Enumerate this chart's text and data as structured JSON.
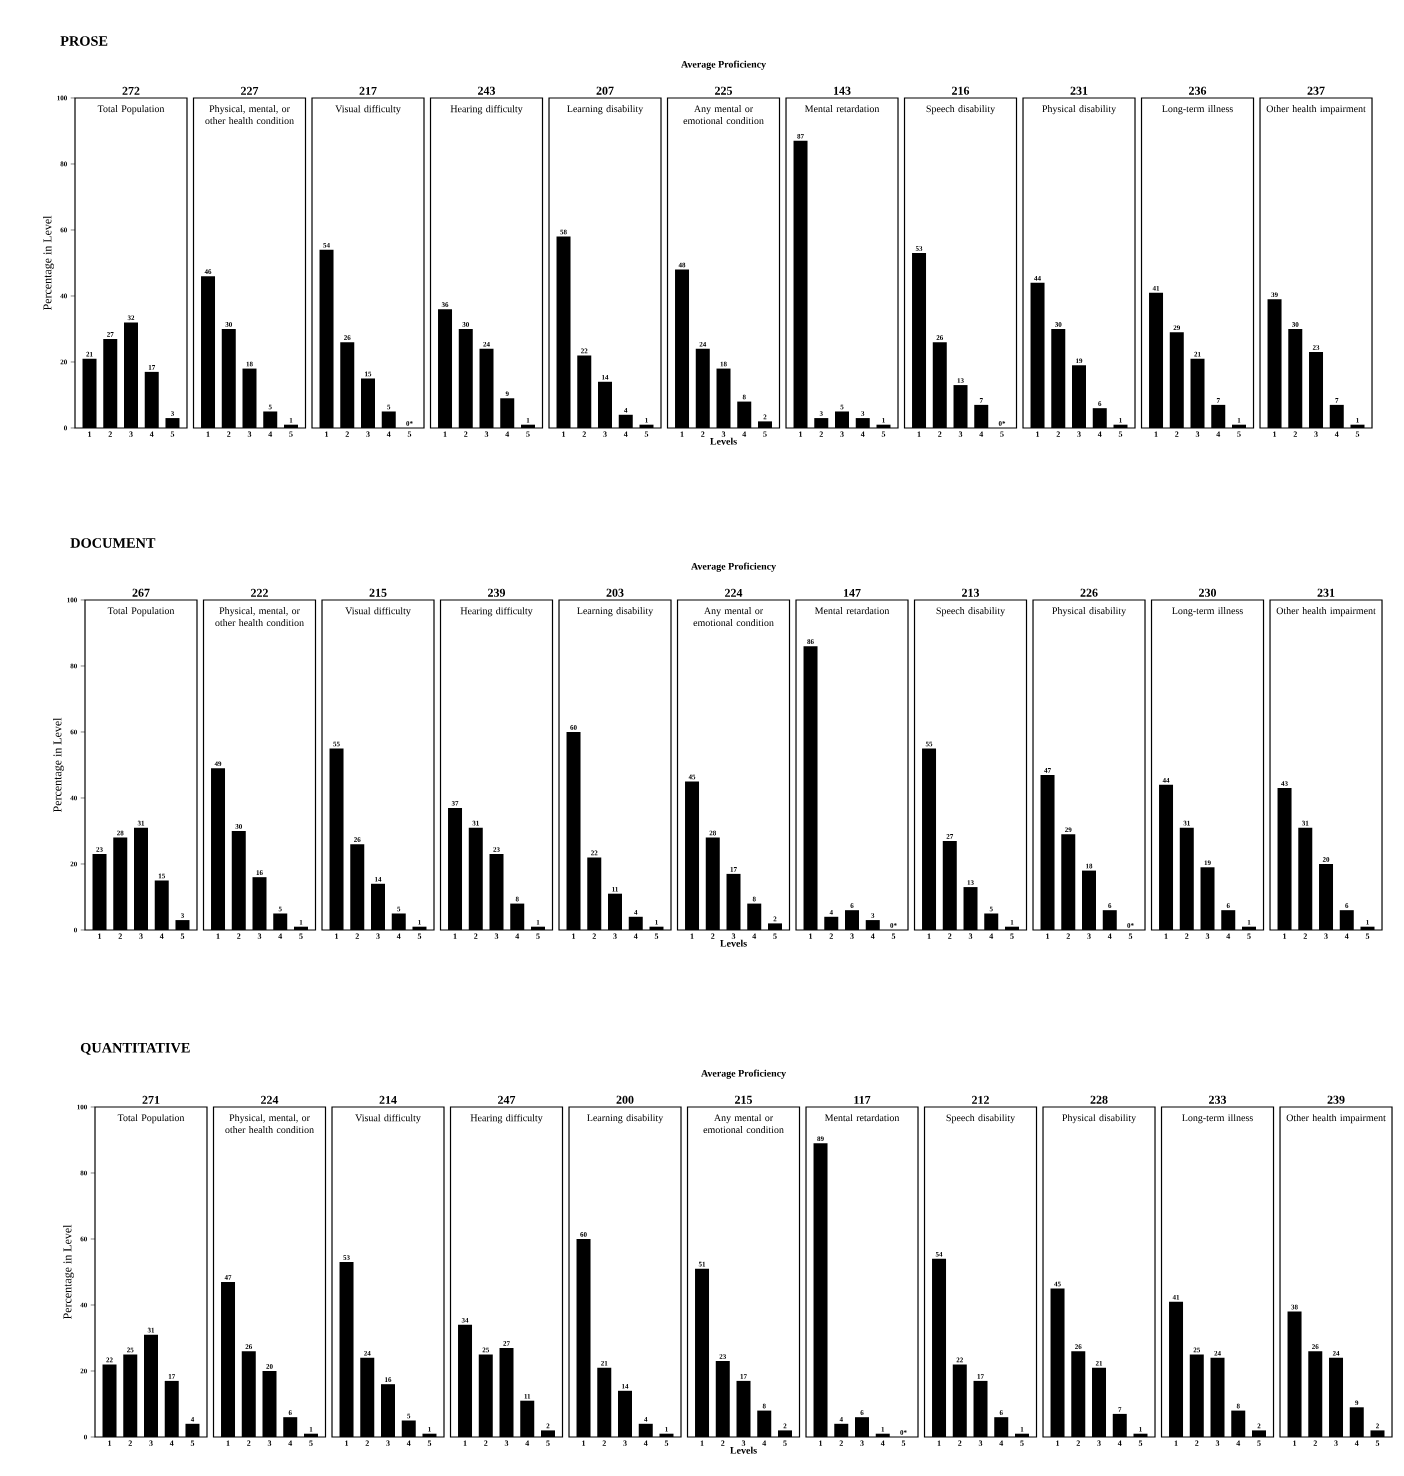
{
  "chart_data": [
    {
      "type": "bar",
      "title": "Total Population",
      "subtitle": "272",
      "annotations": [
        "PROSE"
      ],
      "ylabel": "Percentage in Level",
      "categories": [
        "1",
        "2",
        "3",
        "4",
        "5"
      ],
      "values": [
        21,
        27,
        32,
        17,
        3
      ],
      "value_labels": [
        "21",
        "27",
        "32",
        "17",
        "3"
      ],
      "color": "#000000",
      "ylim": [
        0,
        100
      ],
      "yticks": [
        0,
        20,
        40,
        60,
        80,
        100
      ]
    },
    {
      "type": "bar",
      "title": "Physical, mental, or other health condition",
      "subtitle": "227",
      "categories": [
        "1",
        "2",
        "3",
        "4",
        "5"
      ],
      "values": [
        46,
        30,
        18,
        5,
        1
      ],
      "value_labels": [
        "46",
        "30",
        "18",
        "5",
        "1"
      ],
      "color": "#000000",
      "ylim": [
        0,
        100
      ],
      "tick_labels": "x"
    },
    {
      "type": "bar",
      "title": "Visual difficulty",
      "subtitle": "217",
      "categories": [
        "1",
        "2",
        "3",
        "4",
        "5"
      ],
      "values": [
        54,
        26,
        15,
        5,
        0
      ],
      "value_labels": [
        "54",
        "26",
        "15",
        "5",
        "0*"
      ],
      "color": "#000000",
      "ylim": [
        0,
        100
      ],
      "tick_labels": "x"
    },
    {
      "type": "bar",
      "title": "Hearing difficulty",
      "subtitle": "243",
      "categories": [
        "1",
        "2",
        "3",
        "4",
        "5"
      ],
      "values": [
        36,
        30,
        24,
        9,
        1
      ],
      "value_labels": [
        "36",
        "30",
        "24",
        "9",
        "1"
      ],
      "color": "#000000",
      "ylim": [
        0,
        100
      ],
      "tick_labels": "x"
    },
    {
      "type": "bar",
      "title": "Learning disability",
      "subtitle": "207",
      "categories": [
        "1",
        "2",
        "3",
        "4",
        "5"
      ],
      "values": [
        58,
        22,
        14,
        4,
        1
      ],
      "value_labels": [
        "58",
        "22",
        "14",
        "4",
        "1"
      ],
      "color": "#000000",
      "ylim": [
        0,
        100
      ],
      "tick_labels": "x"
    },
    {
      "type": "bar",
      "title": "Any mental or emotional condition",
      "subtitle": "225",
      "annotations": [
        "Average Proficiency"
      ],
      "xlabel": "Levels",
      "categories": [
        "1",
        "2",
        "3",
        "4",
        "5"
      ],
      "values": [
        48,
        24,
        18,
        8,
        2
      ],
      "value_labels": [
        "48",
        "24",
        "18",
        "8",
        "2"
      ],
      "color": "#000000",
      "ylim": [
        0,
        100
      ],
      "tick_labels": "x"
    },
    {
      "type": "bar",
      "title": "Mental retardation",
      "subtitle": "143",
      "categories": [
        "1",
        "2",
        "3",
        "4",
        "5"
      ],
      "values": [
        87,
        3,
        5,
        3,
        1
      ],
      "value_labels": [
        "87",
        "3",
        "5",
        "3",
        "1"
      ],
      "color": "#000000",
      "ylim": [
        0,
        100
      ],
      "tick_labels": "x"
    },
    {
      "type": "bar",
      "title": "Speech disability",
      "subtitle": "216",
      "categories": [
        "1",
        "2",
        "3",
        "4",
        "5"
      ],
      "values": [
        53,
        26,
        13,
        7,
        0
      ],
      "value_labels": [
        "53",
        "26",
        "13",
        "7",
        "0*"
      ],
      "color": "#000000",
      "ylim": [
        0,
        100
      ],
      "tick_labels": "x"
    },
    {
      "type": "bar",
      "title": "Physical disability",
      "subtitle": "231",
      "categories": [
        "1",
        "2",
        "3",
        "4",
        "5"
      ],
      "values": [
        44,
        30,
        19,
        6,
        1
      ],
      "value_labels": [
        "44",
        "30",
        "19",
        "6",
        "1"
      ],
      "color": "#000000",
      "ylim": [
        0,
        100
      ],
      "tick_labels": "x"
    },
    {
      "type": "bar",
      "title": "Long-term illness",
      "subtitle": "236",
      "categories": [
        "1",
        "2",
        "3",
        "4",
        "5"
      ],
      "values": [
        41,
        29,
        21,
        7,
        1
      ],
      "value_labels": [
        "41",
        "29",
        "21",
        "7",
        "1"
      ],
      "color": "#000000",
      "ylim": [
        0,
        100
      ],
      "tick_labels": "x"
    },
    {
      "type": "bar",
      "title": "Other health impairment",
      "subtitle": "237",
      "categories": [
        "1",
        "2",
        "3",
        "4",
        "5"
      ],
      "values": [
        39,
        30,
        23,
        7,
        1
      ],
      "value_labels": [
        "39",
        "30",
        "23",
        "7",
        "1"
      ],
      "color": "#000000",
      "ylim": [
        0,
        100
      ],
      "tick_labels": "x"
    },
    {
      "type": "bar",
      "title": "Total Population",
      "subtitle": "267",
      "annotations": [
        "DOCUMENT"
      ],
      "ylabel": "Percentage in Level",
      "categories": [
        "1",
        "2",
        "3",
        "4",
        "5"
      ],
      "values": [
        23,
        28,
        31,
        15,
        3
      ],
      "value_labels": [
        "23",
        "28",
        "31",
        "15",
        "3"
      ],
      "color": "#000000",
      "ylim": [
        0,
        100
      ],
      "yticks": [
        0,
        20,
        40,
        60,
        80,
        100
      ]
    },
    {
      "type": "bar",
      "title": "Physical, mental, or other health condition",
      "subtitle": "222",
      "categories": [
        "1",
        "2",
        "3",
        "4",
        "5"
      ],
      "values": [
        49,
        30,
        16,
        5,
        1
      ],
      "value_labels": [
        "49",
        "30",
        "16",
        "5",
        "1"
      ],
      "color": "#000000",
      "ylim": [
        0,
        100
      ],
      "tick_labels": "x"
    },
    {
      "type": "bar",
      "title": "Visual difficulty",
      "subtitle": "215",
      "categories": [
        "1",
        "2",
        "3",
        "4",
        "5"
      ],
      "values": [
        55,
        26,
        14,
        5,
        1
      ],
      "value_labels": [
        "55",
        "26",
        "14",
        "5",
        "1"
      ],
      "color": "#000000",
      "ylim": [
        0,
        100
      ],
      "tick_labels": "x"
    },
    {
      "type": "bar",
      "title": "Hearing difficulty",
      "subtitle": "239",
      "categories": [
        "1",
        "2",
        "3",
        "4",
        "5"
      ],
      "values": [
        37,
        31,
        23,
        8,
        1
      ],
      "value_labels": [
        "37",
        "31",
        "23",
        "8",
        "1"
      ],
      "color": "#000000",
      "ylim": [
        0,
        100
      ],
      "tick_labels": "x"
    },
    {
      "type": "bar",
      "title": "Learning disability",
      "subtitle": "203",
      "categories": [
        "1",
        "2",
        "3",
        "4",
        "5"
      ],
      "values": [
        60,
        22,
        11,
        4,
        1
      ],
      "value_labels": [
        "60",
        "22",
        "11",
        "4",
        "1"
      ],
      "color": "#000000",
      "ylim": [
        0,
        100
      ],
      "tick_labels": "x"
    },
    {
      "type": "bar",
      "title": "Any mental or emotional condition",
      "subtitle": "224",
      "annotations": [
        "Average Proficiency"
      ],
      "xlabel": "Levels",
      "categories": [
        "1",
        "2",
        "3",
        "4",
        "5"
      ],
      "values": [
        45,
        28,
        17,
        8,
        2
      ],
      "value_labels": [
        "45",
        "28",
        "17",
        "8",
        "2"
      ],
      "color": "#000000",
      "ylim": [
        0,
        100
      ],
      "tick_labels": "x"
    },
    {
      "type": "bar",
      "title": "Mental retardation",
      "subtitle": "147",
      "categories": [
        "1",
        "2",
        "3",
        "4",
        "5"
      ],
      "values": [
        86,
        4,
        6,
        3,
        0
      ],
      "value_labels": [
        "86",
        "4",
        "6",
        "3",
        "0*"
      ],
      "color": "#000000",
      "ylim": [
        0,
        100
      ],
      "tick_labels": "x"
    },
    {
      "type": "bar",
      "title": "Speech disability",
      "subtitle": "213",
      "categories": [
        "1",
        "2",
        "3",
        "4",
        "5"
      ],
      "values": [
        55,
        27,
        13,
        5,
        1
      ],
      "value_labels": [
        "55",
        "27",
        "13",
        "5",
        "1"
      ],
      "color": "#000000",
      "ylim": [
        0,
        100
      ],
      "tick_labels": "x"
    },
    {
      "type": "bar",
      "title": "Physical disability",
      "subtitle": "226",
      "categories": [
        "1",
        "2",
        "3",
        "4",
        "5"
      ],
      "values": [
        47,
        29,
        18,
        6,
        0
      ],
      "value_labels": [
        "47",
        "29",
        "18",
        "6",
        "0*"
      ],
      "color": "#000000",
      "ylim": [
        0,
        100
      ],
      "tick_labels": "x"
    },
    {
      "type": "bar",
      "title": "Long-term illness",
      "subtitle": "230",
      "categories": [
        "1",
        "2",
        "3",
        "4",
        "5"
      ],
      "values": [
        44,
        31,
        19,
        6,
        1
      ],
      "value_labels": [
        "44",
        "31",
        "19",
        "6",
        "1"
      ],
      "color": "#000000",
      "ylim": [
        0,
        100
      ],
      "tick_labels": "x"
    },
    {
      "type": "bar",
      "title": "Other health impairment",
      "subtitle": "231",
      "categories": [
        "1",
        "2",
        "3",
        "4",
        "5"
      ],
      "values": [
        43,
        31,
        20,
        6,
        1
      ],
      "value_labels": [
        "43",
        "31",
        "20",
        "6",
        "1"
      ],
      "color": "#000000",
      "ylim": [
        0,
        100
      ],
      "tick_labels": "x"
    },
    {
      "type": "bar",
      "title": "Total Population",
      "subtitle": "271",
      "annotations": [
        "QUANTITATIVE"
      ],
      "ylabel": "Percentage in Level",
      "categories": [
        "1",
        "2",
        "3",
        "4",
        "5"
      ],
      "values": [
        22,
        25,
        31,
        17,
        4
      ],
      "value_labels": [
        "22",
        "25",
        "31",
        "17",
        "4"
      ],
      "color": "#000000",
      "ylim": [
        0,
        100
      ],
      "yticks": [
        0,
        20,
        40,
        60,
        80,
        100
      ]
    },
    {
      "type": "bar",
      "title": "Physical, mental, or other health condition",
      "subtitle": "224",
      "categories": [
        "1",
        "2",
        "3",
        "4",
        "5"
      ],
      "values": [
        47,
        26,
        20,
        6,
        1
      ],
      "value_labels": [
        "47",
        "26",
        "20",
        "6",
        "1"
      ],
      "color": "#000000",
      "ylim": [
        0,
        100
      ],
      "tick_labels": "x"
    },
    {
      "type": "bar",
      "title": "Visual difficulty",
      "subtitle": "214",
      "categories": [
        "1",
        "2",
        "3",
        "4",
        "5"
      ],
      "values": [
        53,
        24,
        16,
        5,
        1
      ],
      "value_labels": [
        "53",
        "24",
        "16",
        "5",
        "1"
      ],
      "color": "#000000",
      "ylim": [
        0,
        100
      ],
      "tick_labels": "x"
    },
    {
      "type": "bar",
      "title": "Hearing difficulty",
      "subtitle": "247",
      "categories": [
        "1",
        "2",
        "3",
        "4",
        "5"
      ],
      "values": [
        34,
        25,
        27,
        11,
        2
      ],
      "value_labels": [
        "34",
        "25",
        "27",
        "11",
        "2"
      ],
      "color": "#000000",
      "ylim": [
        0,
        100
      ],
      "tick_labels": "x"
    },
    {
      "type": "bar",
      "title": "Learning disability",
      "subtitle": "200",
      "categories": [
        "1",
        "2",
        "3",
        "4",
        "5"
      ],
      "values": [
        60,
        21,
        14,
        4,
        1
      ],
      "value_labels": [
        "60",
        "21",
        "14",
        "4",
        "1"
      ],
      "color": "#000000",
      "ylim": [
        0,
        100
      ],
      "tick_labels": "x"
    },
    {
      "type": "bar",
      "title": "Any mental or emotional condition",
      "subtitle": "215",
      "annotations": [
        "Average Proficiency"
      ],
      "xlabel": "Levels",
      "categories": [
        "1",
        "2",
        "3",
        "4",
        "5"
      ],
      "values": [
        51,
        23,
        17,
        8,
        2
      ],
      "value_labels": [
        "51",
        "23",
        "17",
        "8",
        "2"
      ],
      "color": "#000000",
      "ylim": [
        0,
        100
      ],
      "tick_labels": "x"
    },
    {
      "type": "bar",
      "title": "Mental retardation",
      "subtitle": "117",
      "categories": [
        "1",
        "2",
        "3",
        "4",
        "5"
      ],
      "values": [
        89,
        4,
        6,
        1,
        0
      ],
      "value_labels": [
        "89",
        "4",
        "6",
        "1",
        "0*"
      ],
      "color": "#000000",
      "ylim": [
        0,
        100
      ],
      "tick_labels": "x"
    },
    {
      "type": "bar",
      "title": "Speech disability",
      "subtitle": "212",
      "categories": [
        "1",
        "2",
        "3",
        "4",
        "5"
      ],
      "values": [
        54,
        22,
        17,
        6,
        1
      ],
      "value_labels": [
        "54",
        "22",
        "17",
        "6",
        "1"
      ],
      "color": "#000000",
      "ylim": [
        0,
        100
      ],
      "tick_labels": "x"
    },
    {
      "type": "bar",
      "title": "Physical disability",
      "subtitle": "228",
      "categories": [
        "1",
        "2",
        "3",
        "4",
        "5"
      ],
      "values": [
        45,
        26,
        21,
        7,
        1
      ],
      "value_labels": [
        "45",
        "26",
        "21",
        "7",
        "1"
      ],
      "color": "#000000",
      "ylim": [
        0,
        100
      ],
      "tick_labels": "x"
    },
    {
      "type": "bar",
      "title": "Long-term illness",
      "subtitle": "233",
      "categories": [
        "1",
        "2",
        "3",
        "4",
        "5"
      ],
      "values": [
        41,
        25,
        24,
        8,
        2
      ],
      "value_labels": [
        "41",
        "25",
        "24",
        "8",
        "2"
      ],
      "color": "#000000",
      "ylim": [
        0,
        100
      ],
      "tick_labels": "x"
    },
    {
      "type": "bar",
      "title": "Other health impairment",
      "subtitle": "239",
      "categories": [
        "1",
        "2",
        "3",
        "4",
        "5"
      ],
      "values": [
        38,
        26,
        24,
        9,
        2
      ],
      "value_labels": [
        "38",
        "26",
        "24",
        "9",
        "2"
      ],
      "color": "#000000",
      "ylim": [
        0,
        100
      ],
      "tick_labels": "x"
    }
  ]
}
